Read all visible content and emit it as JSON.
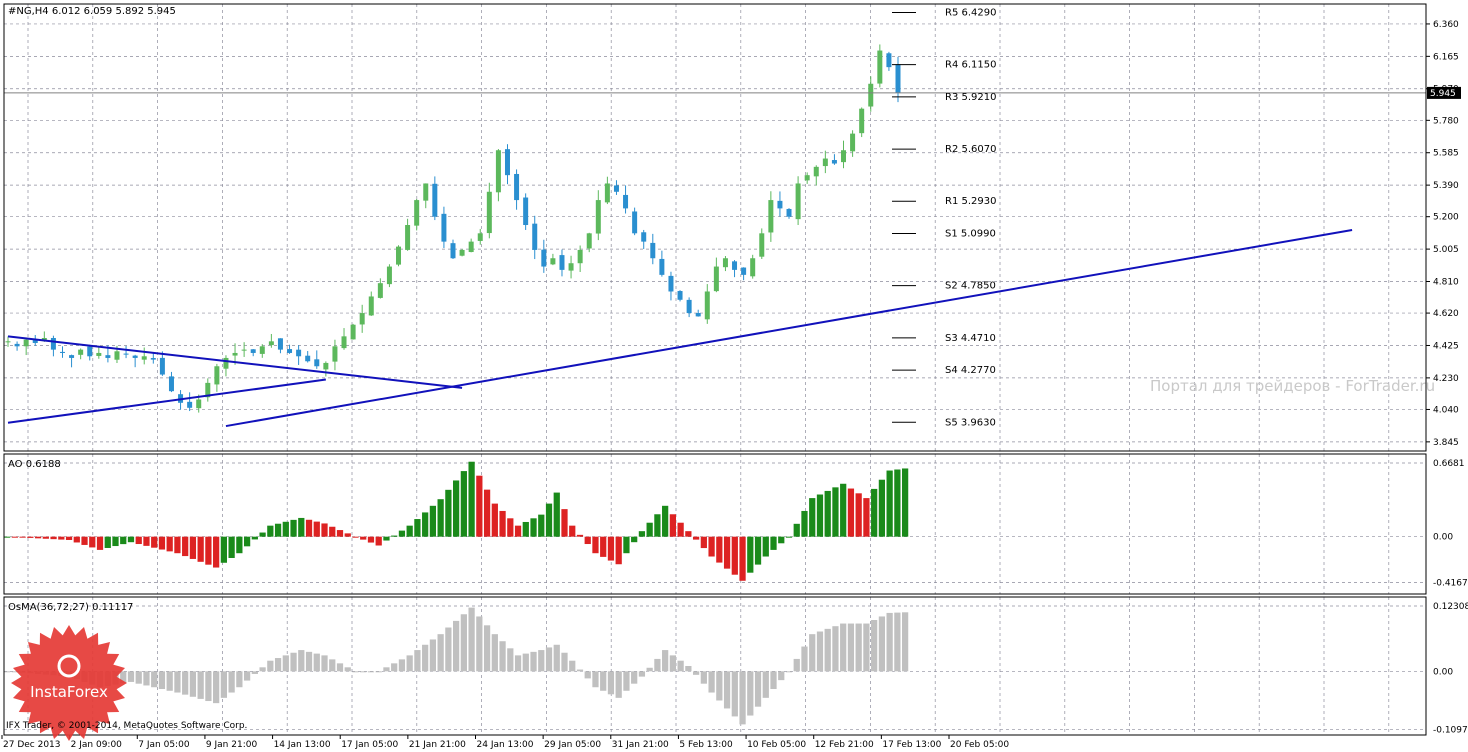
{
  "header": {
    "symbol_line": "#NG,H4  6.012 6.059 5.892 5.945"
  },
  "watermark": "Портал для трейдеров - ForTrader.ru",
  "copyright": "IFX Trader, © 2001-2014, MetaQuotes Software Corp.",
  "logo": {
    "text": "InstaForex",
    "color": "#e53935"
  },
  "colors": {
    "bull": "#5cb85c",
    "bear": "#2a8fd0",
    "trendline": "#1111bb",
    "ao_up": "#1a8a1a",
    "ao_down": "#dd2222",
    "osma": "#c0c0c0",
    "grid": "#8c8c9c"
  },
  "chart_data": [
    {
      "type": "candlestick",
      "panel": "price",
      "title": "#NG,H4",
      "ohlc_last": {
        "open": 6.012,
        "high": 6.059,
        "low": 5.892,
        "close": 5.945
      },
      "current_price": "5.945",
      "ylim": [
        3.79,
        6.48
      ],
      "yticks": [
        "6.360",
        "6.165",
        "5.970",
        "5.780",
        "5.585",
        "5.390",
        "5.200",
        "5.005",
        "4.810",
        "4.620",
        "4.425",
        "4.230",
        "4.040",
        "3.845"
      ],
      "xticks": [
        "27 Dec 2013",
        "2 Jan 09:00",
        "7 Jan 05:00",
        "9 Jan 21:00",
        "14 Jan 13:00",
        "17 Jan 05:00",
        "21 Jan 21:00",
        "24 Jan 13:00",
        "29 Jan 05:00",
        "31 Jan 21:00",
        "5 Feb 13:00",
        "10 Feb 05:00",
        "12 Feb 21:00",
        "17 Feb 13:00",
        "20 Feb 05:00"
      ],
      "closes_approx": [
        4.45,
        4.42,
        4.46,
        4.44,
        4.47,
        4.4,
        4.38,
        4.35,
        4.4,
        4.36,
        4.38,
        4.35,
        4.39,
        4.37,
        4.35,
        4.36,
        4.34,
        4.25,
        4.15,
        4.08,
        4.05,
        4.1,
        4.2,
        4.3,
        4.35,
        4.38,
        4.4,
        4.38,
        4.42,
        4.45,
        4.4,
        4.38,
        4.36,
        4.33,
        4.3,
        4.32,
        4.42,
        4.48,
        4.55,
        4.62,
        4.72,
        4.8,
        4.9,
        5.02,
        5.15,
        5.3,
        5.4,
        5.2,
        5.05,
        4.95,
        5.0,
        5.05,
        5.1,
        5.35,
        5.6,
        5.45,
        5.3,
        5.15,
        5.0,
        4.9,
        4.95,
        4.88,
        4.92,
        5.0,
        5.1,
        5.3,
        5.4,
        5.35,
        5.25,
        5.1,
        5.05,
        4.95,
        4.85,
        4.75,
        4.7,
        4.62,
        4.6,
        4.75,
        4.9,
        4.95,
        4.88,
        4.85,
        4.95,
        5.1,
        5.3,
        5.25,
        5.2,
        5.4,
        5.45,
        5.5,
        5.55,
        5.52,
        5.6,
        5.7,
        5.85,
        6.0,
        6.2,
        6.1,
        5.945
      ],
      "pivot_levels": [
        {
          "label": "R5",
          "value": 6.429,
          "text": "R5  6.4290"
        },
        {
          "label": "R4",
          "value": 6.115,
          "text": "R4  6.1150"
        },
        {
          "label": "R3",
          "value": 5.921,
          "text": "R3  5.9210"
        },
        {
          "label": "R2",
          "value": 5.607,
          "text": "R2  5.6070"
        },
        {
          "label": "R1",
          "value": 5.293,
          "text": "R1  5.2930"
        },
        {
          "label": "S1",
          "value": 5.099,
          "text": "S1  5.0990"
        },
        {
          "label": "S2",
          "value": 4.785,
          "text": "S2  4.7850"
        },
        {
          "label": "S3",
          "value": 4.471,
          "text": "S3  4.4710"
        },
        {
          "label": "S4",
          "value": 4.277,
          "text": "S4  4.2770"
        },
        {
          "label": "S5",
          "value": 3.963,
          "text": "S5  3.9630"
        }
      ],
      "trendlines": [
        {
          "from": [
            0,
            4.48
          ],
          "to": [
            50,
            4.17
          ]
        },
        {
          "from": [
            0,
            3.96
          ],
          "to": [
            35,
            4.22
          ]
        },
        {
          "from": [
            24,
            3.94
          ],
          "to": [
            148,
            5.12
          ]
        }
      ]
    },
    {
      "type": "bar",
      "panel": "AO",
      "title": "AO 0.6188",
      "ylim": [
        -0.52,
        0.75
      ],
      "yticks": [
        "0.6681",
        "0.00",
        "-0.4167"
      ],
      "keypoints": [
        [
          0,
          0
        ],
        [
          8,
          -0.03
        ],
        [
          12,
          -0.12
        ],
        [
          16,
          -0.05
        ],
        [
          22,
          -0.15
        ],
        [
          27,
          -0.28
        ],
        [
          30,
          -0.15
        ],
        [
          34,
          0.1
        ],
        [
          38,
          0.17
        ],
        [
          41,
          0.12
        ],
        [
          45,
          0.0
        ],
        [
          48,
          -0.08
        ],
        [
          52,
          0.1
        ],
        [
          56,
          0.34
        ],
        [
          60,
          0.68
        ],
        [
          63,
          0.3
        ],
        [
          66,
          0.1
        ],
        [
          69,
          0.2
        ],
        [
          71,
          0.4
        ],
        [
          73,
          0.1
        ],
        [
          76,
          -0.15
        ],
        [
          79,
          -0.25
        ],
        [
          82,
          0.05
        ],
        [
          85,
          0.28
        ],
        [
          88,
          0.05
        ],
        [
          91,
          -0.18
        ],
        [
          95,
          -0.4
        ],
        [
          98,
          -0.18
        ],
        [
          101,
          0.0
        ],
        [
          104,
          0.35
        ],
        [
          108,
          0.48
        ],
        [
          111,
          0.35
        ],
        [
          114,
          0.6
        ],
        [
          116,
          0.6188
        ]
      ]
    },
    {
      "type": "bar",
      "panel": "OsMA",
      "title": "OsMA(36,72,27) 0.11117",
      "ylim": [
        -0.12,
        0.14
      ],
      "yticks": [
        "0.12308",
        "0.00",
        "-0.10972"
      ],
      "keypoints": [
        [
          0,
          0
        ],
        [
          8,
          -0.01
        ],
        [
          12,
          -0.03
        ],
        [
          16,
          -0.02
        ],
        [
          22,
          -0.04
        ],
        [
          27,
          -0.06
        ],
        [
          30,
          -0.03
        ],
        [
          34,
          0.02
        ],
        [
          38,
          0.04
        ],
        [
          41,
          0.03
        ],
        [
          45,
          0.0
        ],
        [
          48,
          0.0
        ],
        [
          52,
          0.03
        ],
        [
          56,
          0.07
        ],
        [
          60,
          0.12
        ],
        [
          63,
          0.07
        ],
        [
          66,
          0.03
        ],
        [
          69,
          0.04
        ],
        [
          71,
          0.05
        ],
        [
          73,
          0.02
        ],
        [
          76,
          -0.03
        ],
        [
          79,
          -0.05
        ],
        [
          82,
          -0.01
        ],
        [
          85,
          0.04
        ],
        [
          88,
          0.01
        ],
        [
          91,
          -0.04
        ],
        [
          95,
          -0.1
        ],
        [
          98,
          -0.05
        ],
        [
          101,
          0.0
        ],
        [
          104,
          0.07
        ],
        [
          108,
          0.09
        ],
        [
          111,
          0.09
        ],
        [
          114,
          0.11
        ],
        [
          116,
          0.11117
        ]
      ]
    }
  ]
}
